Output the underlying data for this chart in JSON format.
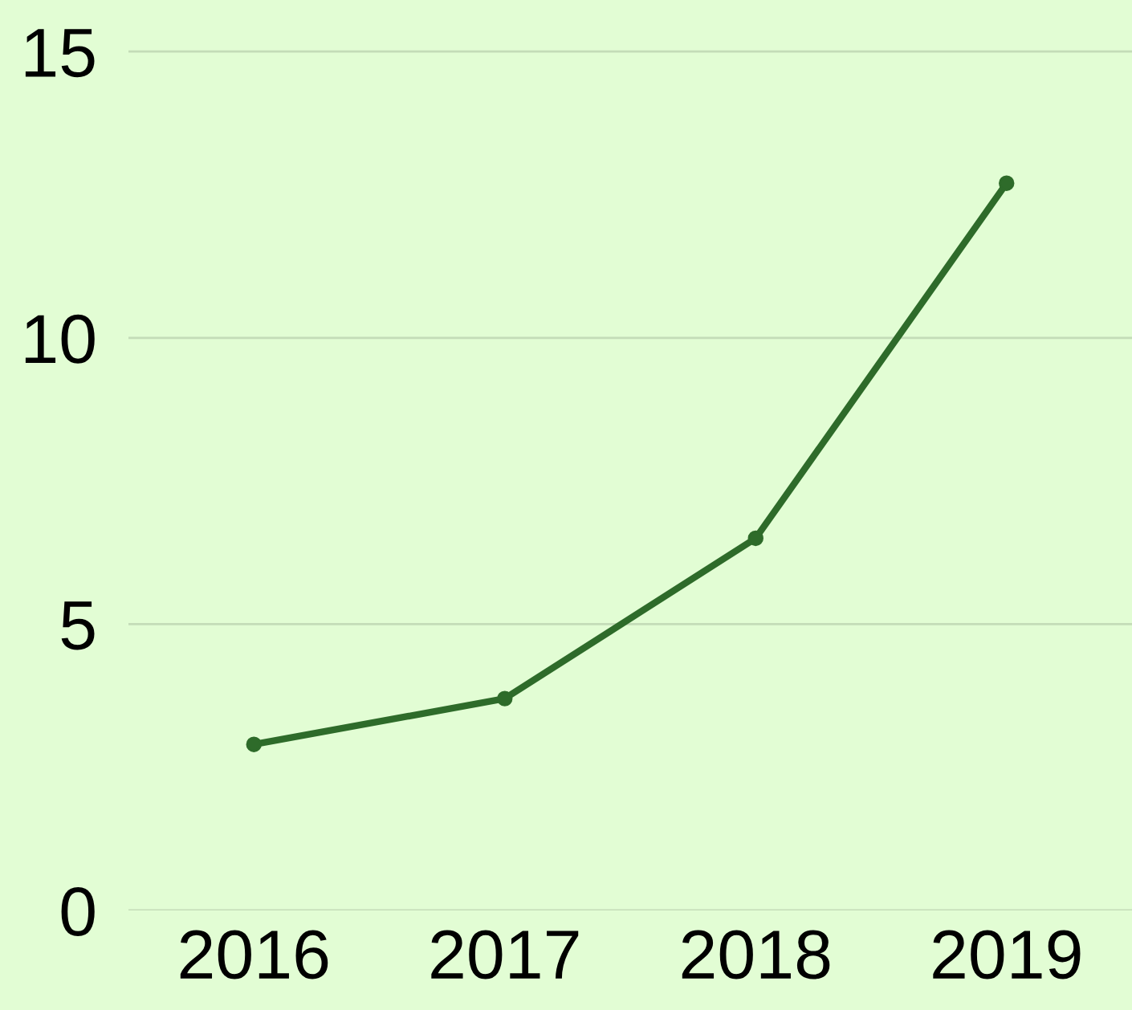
{
  "chart_data": {
    "type": "line",
    "categories": [
      "2016",
      "2017",
      "2018",
      "2019"
    ],
    "series": [
      {
        "color": "#2e6b2a",
        "values": [
          2.9,
          3.7,
          6.5,
          12.7
        ]
      }
    ],
    "ylim": [
      0,
      15.9
    ],
    "yticks": [
      0,
      5,
      10,
      15
    ],
    "grid": "y",
    "marker": "circle",
    "line_style": "solid",
    "legend": false
  }
}
